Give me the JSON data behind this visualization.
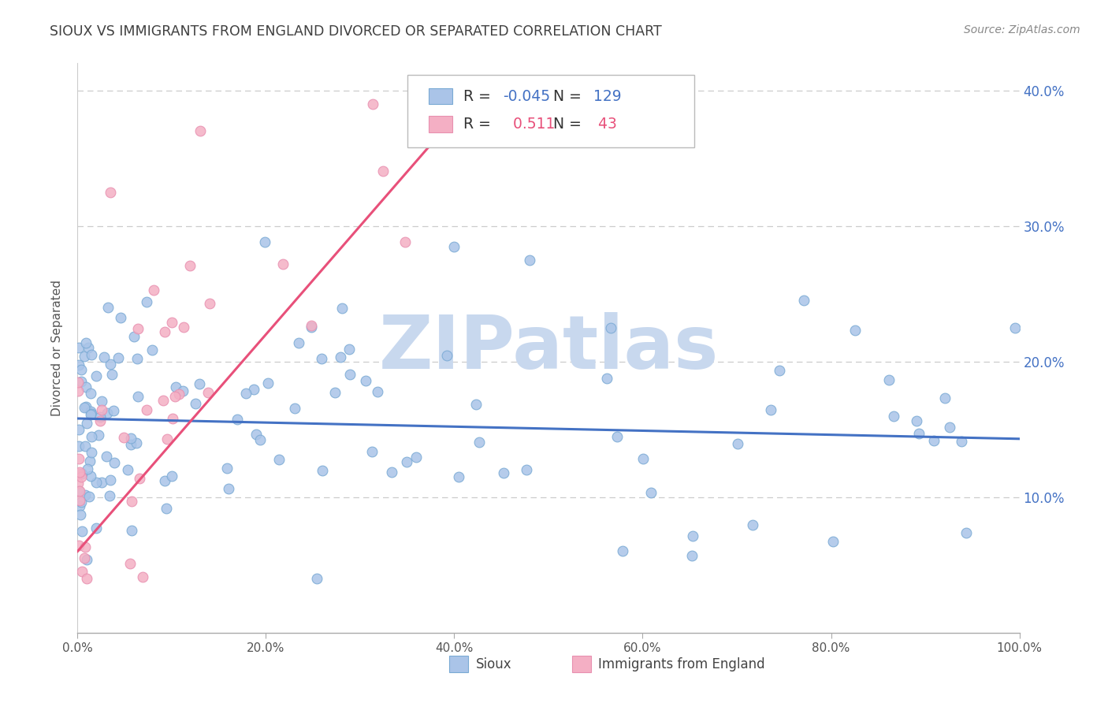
{
  "title": "SIOUX VS IMMIGRANTS FROM ENGLAND DIVORCED OR SEPARATED CORRELATION CHART",
  "source": "Source: ZipAtlas.com",
  "ylabel": "Divorced or Separated",
  "xlim": [
    0,
    1.0
  ],
  "ylim": [
    0,
    0.42
  ],
  "xtick_labels": [
    "0.0%",
    "20.0%",
    "40.0%",
    "60.0%",
    "80.0%",
    "100.0%"
  ],
  "xtick_positions": [
    0,
    0.2,
    0.4,
    0.6,
    0.8,
    1.0
  ],
  "ytick_labels": [
    "10.0%",
    "20.0%",
    "30.0%",
    "40.0%"
  ],
  "ytick_positions": [
    0.1,
    0.2,
    0.3,
    0.4
  ],
  "legend_labels": [
    "Sioux",
    "Immigrants from England"
  ],
  "blue_color": "#aac4e8",
  "pink_color": "#f4afc4",
  "blue_edge_color": "#7aaad4",
  "pink_edge_color": "#e890b0",
  "blue_line_color": "#4472c4",
  "pink_line_color": "#e8507a",
  "R_blue": -0.045,
  "N_blue": 129,
  "R_pink": 0.511,
  "N_pink": 43,
  "watermark_text": "ZIPatlas",
  "watermark_color": "#c8d8ee",
  "background_color": "#ffffff",
  "grid_color": "#cccccc",
  "ytick_color": "#4472c4",
  "title_color": "#404040",
  "source_color": "#888888"
}
